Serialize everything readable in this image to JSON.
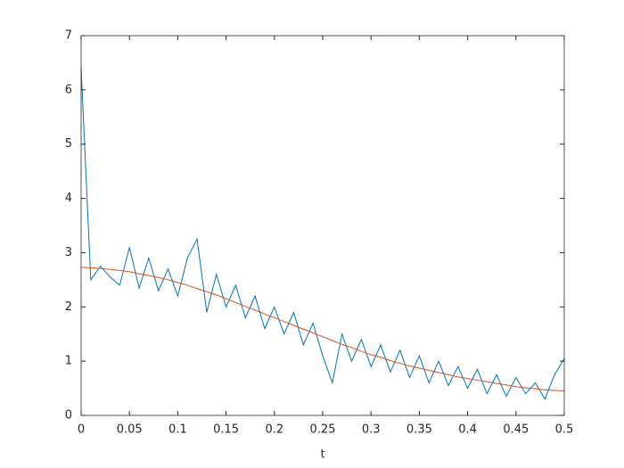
{
  "chart_data": {
    "type": "line",
    "xlabel": "t",
    "x": [
      0,
      0.01,
      0.02,
      0.03,
      0.04,
      0.05,
      0.06,
      0.07,
      0.08,
      0.09,
      0.1,
      0.11,
      0.12,
      0.13,
      0.14,
      0.15,
      0.16,
      0.17,
      0.18,
      0.19,
      0.2,
      0.21,
      0.22,
      0.23,
      0.24,
      0.25,
      0.26,
      0.27,
      0.28,
      0.29,
      0.3,
      0.31,
      0.32,
      0.33,
      0.34,
      0.35,
      0.36,
      0.37,
      0.38,
      0.39,
      0.4,
      0.41,
      0.42,
      0.43,
      0.44,
      0.45,
      0.46,
      0.47,
      0.48,
      0.49,
      0.5
    ],
    "series": [
      {
        "color": "#0072BD",
        "values": [
          6.4,
          2.5,
          2.75,
          2.55,
          2.4,
          3.1,
          2.35,
          2.9,
          2.3,
          2.7,
          2.2,
          2.9,
          3.25,
          1.9,
          2.6,
          2.0,
          2.4,
          1.8,
          2.2,
          1.6,
          2.0,
          1.5,
          1.9,
          1.3,
          1.7,
          1.1,
          0.6,
          1.5,
          1.0,
          1.4,
          0.9,
          1.3,
          0.8,
          1.2,
          0.7,
          1.1,
          0.6,
          1.0,
          0.55,
          0.9,
          0.5,
          0.85,
          0.4,
          0.75,
          0.35,
          0.7,
          0.4,
          0.6,
          0.3,
          0.75,
          1.05
        ]
      },
      {
        "color": "#D95319",
        "values": [
          2.73,
          2.72,
          2.71,
          2.69,
          2.67,
          2.65,
          2.61,
          2.58,
          2.54,
          2.5,
          2.45,
          2.4,
          2.34,
          2.28,
          2.22,
          2.15,
          2.08,
          2.01,
          1.94,
          1.87,
          1.8,
          1.73,
          1.66,
          1.59,
          1.52,
          1.45,
          1.38,
          1.31,
          1.25,
          1.18,
          1.12,
          1.07,
          1.01,
          0.96,
          0.91,
          0.87,
          0.83,
          0.79,
          0.75,
          0.71,
          0.68,
          0.65,
          0.62,
          0.59,
          0.56,
          0.53,
          0.51,
          0.49,
          0.47,
          0.46,
          0.45
        ]
      }
    ],
    "xlim": [
      0,
      0.5
    ],
    "xticks": [
      0,
      0.05,
      0.1,
      0.15,
      0.2,
      0.25,
      0.3,
      0.35,
      0.4,
      0.45,
      0.5
    ],
    "ylim": [
      0,
      7
    ],
    "yticks": [
      0,
      1,
      2,
      3,
      4,
      5,
      6,
      7
    ],
    "box": true
  }
}
